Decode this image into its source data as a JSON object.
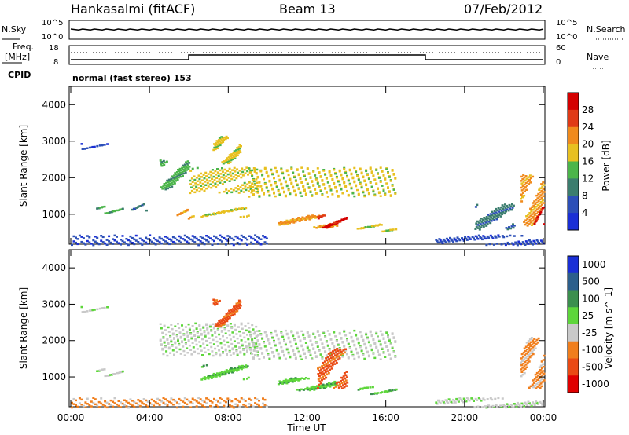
{
  "header": {
    "station": "Hankasalmi (fitACF)",
    "beam": "Beam 13",
    "date": "07/Feb/2012"
  },
  "noise_panel": {
    "left_label": "N.Sky",
    "left_ticks": [
      "10^5",
      "10^0"
    ],
    "right_ticks": [
      "10^5",
      "10^0"
    ],
    "right_label": "N.Search"
  },
  "freq_panel": {
    "left_label_1": "Freq.",
    "left_label_2": "[MHz]",
    "left_ticks": [
      "18",
      "8"
    ],
    "right_ticks": [
      "60",
      "0"
    ],
    "right_label": "Nave",
    "cpid_label": "CPID",
    "cpid_text": "normal (fast stereo) 153"
  },
  "chart_data": [
    {
      "type": "heatmap",
      "name": "Power",
      "ylabel": "Slant Range [km]",
      "xlabel": "Time UT",
      "x_ticks": [
        "00:00",
        "04:00",
        "08:00",
        "12:00",
        "16:00",
        "20:00",
        "00:00"
      ],
      "y_ticks": [
        "1000",
        "2000",
        "3000",
        "4000"
      ],
      "colorbar_label": "Power [dB]",
      "colorbar_ticks": [
        "4",
        "8",
        "12",
        "16",
        "20",
        "24",
        "28"
      ],
      "colorbar_colors": [
        "#1a2fd6",
        "#2c4fb8",
        "#3b7d6e",
        "#4bb54a",
        "#e8c020",
        "#f08a1c",
        "#e03a16",
        "#d40000"
      ],
      "regions": [
        {
          "x": [
            0.5,
            1.9
          ],
          "y": [
            2800,
            2950
          ],
          "level": 1
        },
        {
          "x": [
            1.2,
            2.6
          ],
          "y": [
            1050,
            1250
          ],
          "level": 3
        },
        {
          "x": [
            3.0,
            3.8
          ],
          "y": [
            1100,
            1300
          ],
          "level": 2
        },
        {
          "x": [
            4.5,
            6.0
          ],
          "y": [
            1700,
            2500
          ],
          "level": 3
        },
        {
          "x": [
            5.3,
            6.2
          ],
          "y": [
            900,
            1150
          ],
          "level": 5
        },
        {
          "x": [
            6.0,
            9.5
          ],
          "y": [
            1600,
            2300
          ],
          "level": 4
        },
        {
          "x": [
            7.2,
            8.6
          ],
          "y": [
            2400,
            3150
          ],
          "level": 4
        },
        {
          "x": [
            6.6,
            9.0
          ],
          "y": [
            950,
            1200
          ],
          "level": 4
        },
        {
          "x": [
            9.0,
            16.5
          ],
          "y": [
            1500,
            2300
          ],
          "level": 4
        },
        {
          "x": [
            10.5,
            13.5
          ],
          "y": [
            650,
            1000
          ],
          "level": 5
        },
        {
          "x": [
            12.5,
            14.0
          ],
          "y": [
            650,
            1000
          ],
          "level": 7
        },
        {
          "x": [
            14.5,
            16.5
          ],
          "y": [
            550,
            750
          ],
          "level": 4
        },
        {
          "x": [
            20.5,
            22.5
          ],
          "y": [
            600,
            1300
          ],
          "level": 2
        },
        {
          "x": [
            22.8,
            24.0
          ],
          "y": [
            700,
            2100
          ],
          "level": 5
        },
        {
          "x": [
            23.5,
            24.0
          ],
          "y": [
            750,
            1250
          ],
          "level": 7
        },
        {
          "x": [
            0.0,
            10.0
          ],
          "y": [
            180,
            450
          ],
          "level": 1
        },
        {
          "x": [
            18.5,
            24.0
          ],
          "y": [
            180,
            450
          ],
          "level": 1
        }
      ]
    },
    {
      "type": "heatmap",
      "name": "Velocity",
      "ylabel": "Slant Range [km]",
      "xlabel": "Time UT",
      "x_ticks": [
        "00:00",
        "04:00",
        "08:00",
        "12:00",
        "16:00",
        "20:00",
        "00:00"
      ],
      "y_ticks": [
        "1000",
        "2000",
        "3000",
        "4000"
      ],
      "colorbar_label": "Velocity [m s^-1]",
      "colorbar_ticks": [
        "1000",
        "500",
        "100",
        "25",
        "-25",
        "-100",
        "-500",
        "-1000"
      ],
      "colorbar_colors": [
        "#1a2fd6",
        "#2c5f8c",
        "#3b8f4e",
        "#5dd63a",
        "#c9c9c9",
        "#f07e1c",
        "#ea4a14",
        "#e00000"
      ],
      "regions": [
        {
          "x": [
            0.5,
            1.9
          ],
          "y": [
            2800,
            2950
          ],
          "level": 4
        },
        {
          "x": [
            1.2,
            2.6
          ],
          "y": [
            1050,
            1250
          ],
          "level": 4
        },
        {
          "x": [
            4.5,
            9.5
          ],
          "y": [
            1600,
            2500
          ],
          "level": 4
        },
        {
          "x": [
            7.2,
            8.6
          ],
          "y": [
            2400,
            3150
          ],
          "level": 6
        },
        {
          "x": [
            9.0,
            16.5
          ],
          "y": [
            1500,
            2300
          ],
          "level": 4
        },
        {
          "x": [
            6.6,
            9.0
          ],
          "y": [
            950,
            1350
          ],
          "level": 3
        },
        {
          "x": [
            10.5,
            13.5
          ],
          "y": [
            650,
            1000
          ],
          "level": 3
        },
        {
          "x": [
            12.5,
            14.0
          ],
          "y": [
            700,
            1800
          ],
          "level": 6
        },
        {
          "x": [
            14.5,
            16.5
          ],
          "y": [
            550,
            750
          ],
          "level": 3
        },
        {
          "x": [
            22.8,
            24.0
          ],
          "y": [
            700,
            2100
          ],
          "level": 5
        },
        {
          "x": [
            0.0,
            10.0
          ],
          "y": [
            180,
            450
          ],
          "level": 5
        },
        {
          "x": [
            18.5,
            24.0
          ],
          "y": [
            180,
            450
          ],
          "level": 4
        }
      ]
    }
  ]
}
